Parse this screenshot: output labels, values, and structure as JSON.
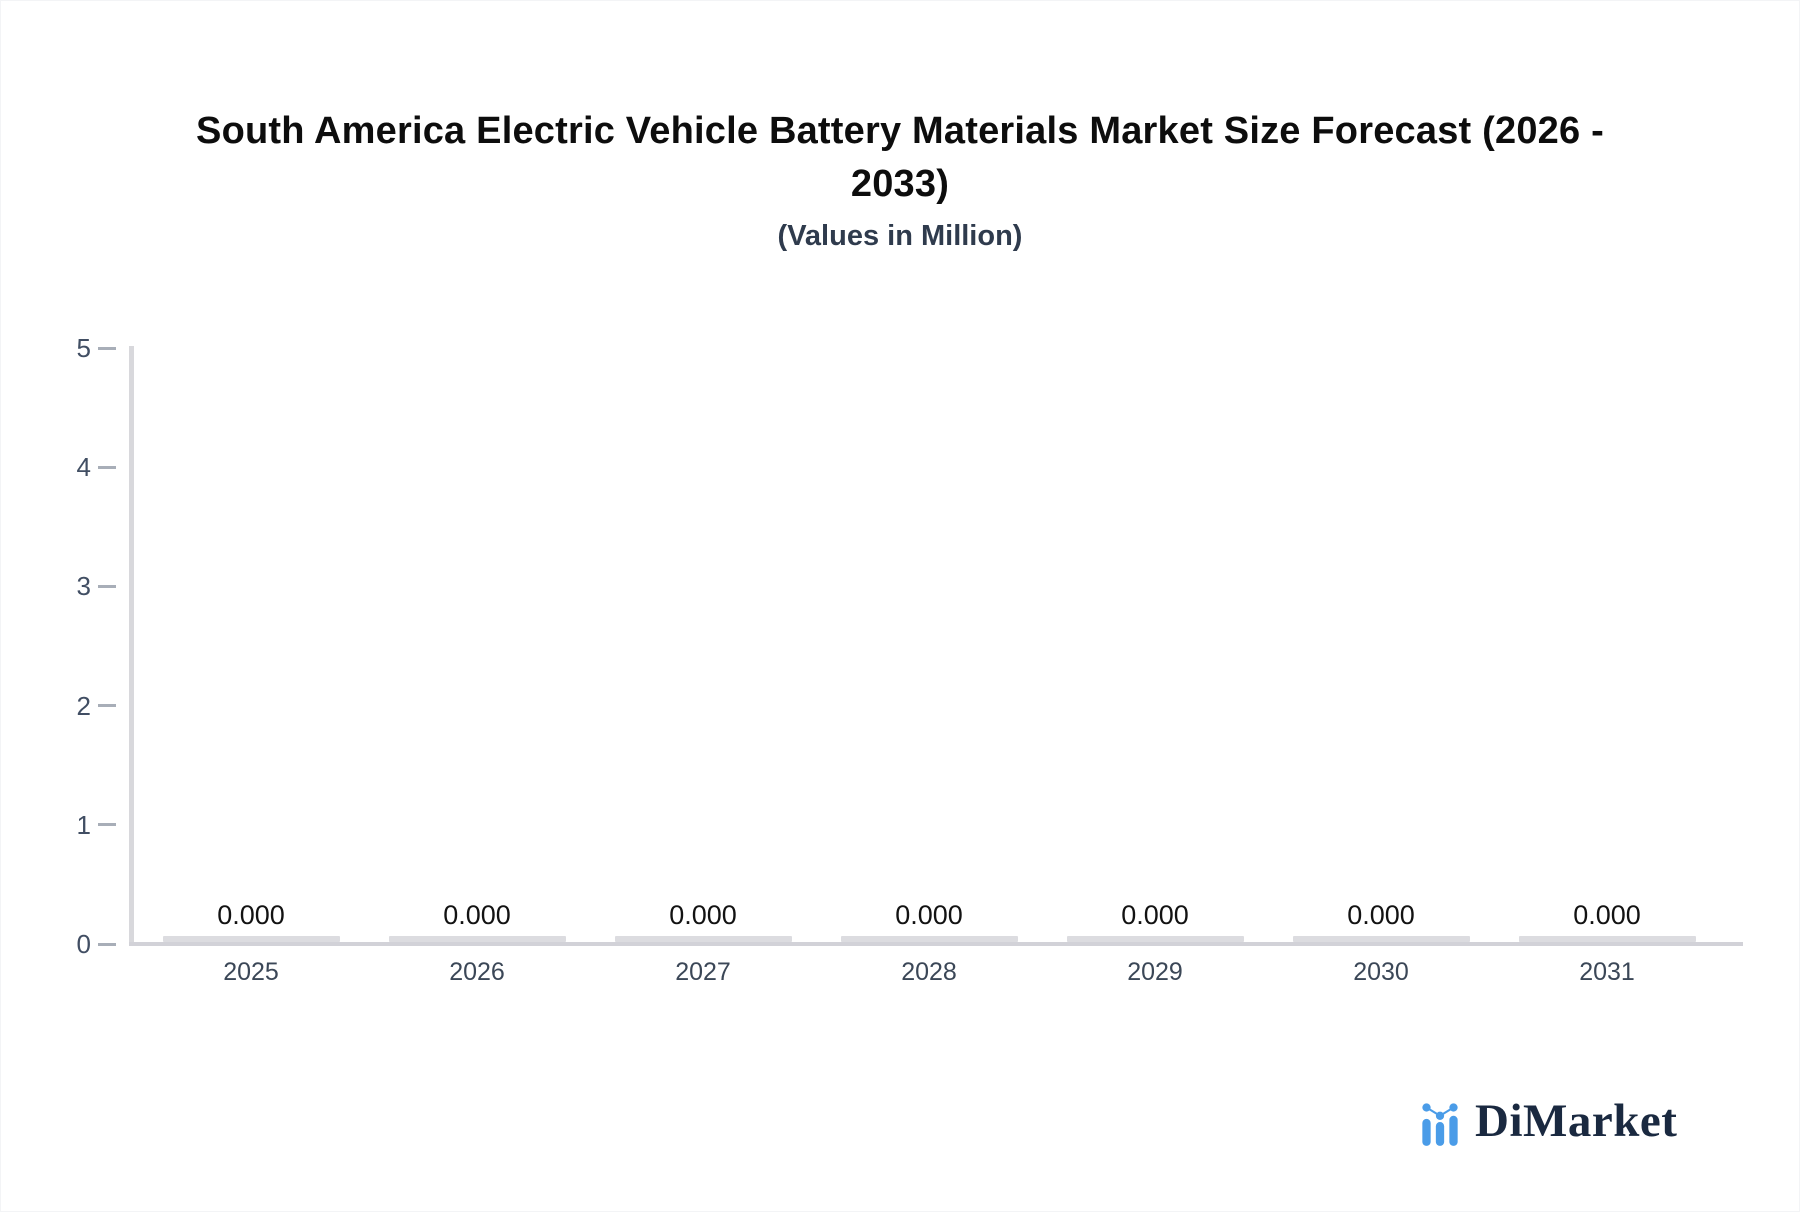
{
  "header": {
    "title_line1": "South America Electric Vehicle Battery Materials Market Size Forecast (2026 -",
    "title_line2": "2033)",
    "subtitle": "(Values in Million)"
  },
  "chart_data": {
    "type": "bar",
    "title": "South America Electric Vehicle Battery Materials Market Size Forecast (2026 - 2033)",
    "subtitle": "(Values in Million)",
    "categories": [
      "2025",
      "2026",
      "2027",
      "2028",
      "2029",
      "2030",
      "2031"
    ],
    "values": [
      0,
      0,
      0,
      0,
      0,
      0,
      0
    ],
    "value_labels": [
      "0.000",
      "0.000",
      "0.000",
      "0.000",
      "0.000",
      "0.000",
      "0.000"
    ],
    "xlabel": "",
    "ylabel": "",
    "ylim": [
      0,
      5
    ],
    "yticks": [
      0,
      1,
      2,
      3,
      4,
      5
    ],
    "grid": false,
    "legend": false
  },
  "colors": {
    "bar_fill": "#dcdce0",
    "axis_line": "#d8d8dc",
    "tick_mark": "#a8aeb8",
    "axis_text": "#414e63",
    "value_text": "#121212",
    "logo_blue": "#4a9ce8",
    "logo_navy": "#1a2940"
  },
  "branding": {
    "logo_text": "DiMarket",
    "logo_icon": "bar-line-chart-icon"
  }
}
